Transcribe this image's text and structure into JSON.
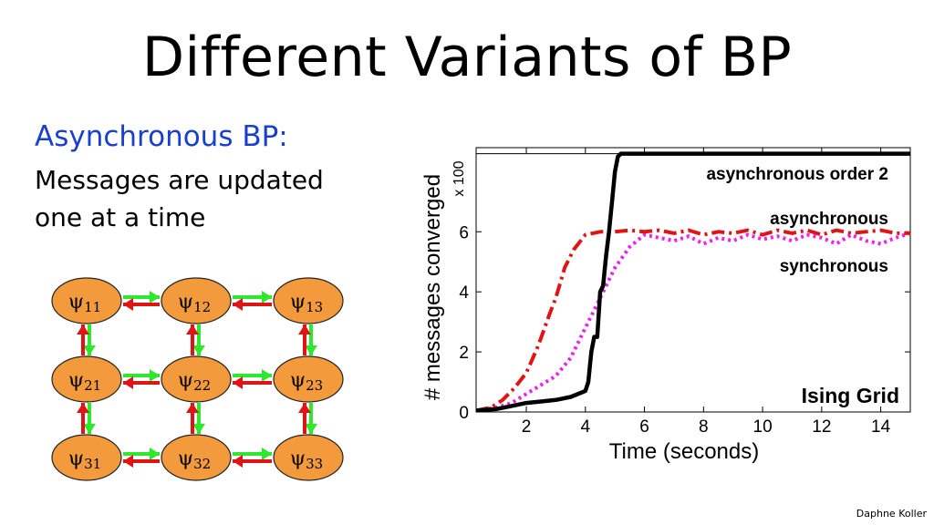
{
  "slide": {
    "title": "Different Variants of BP",
    "heading": "Asynchronous BP:",
    "body_line1": "Messages are updated",
    "body_line2": "one at a time",
    "footer": "Daphne Koller"
  },
  "grid_diagram": {
    "node_symbol": "ψ",
    "nodes": [
      {
        "sub": "11"
      },
      {
        "sub": "12"
      },
      {
        "sub": "13"
      },
      {
        "sub": "21"
      },
      {
        "sub": "22"
      },
      {
        "sub": "23"
      },
      {
        "sub": "31"
      },
      {
        "sub": "32"
      },
      {
        "sub": "33"
      }
    ],
    "colors": {
      "node_fill": "#f39a3c",
      "arrow_green": "#2ee82e",
      "arrow_red": "#e01414"
    }
  },
  "chart_data": {
    "type": "line",
    "title": "",
    "xlabel": "Time (seconds)",
    "ylabel": "# messages converged",
    "y_multiplier": "x 100",
    "xlim": [
      0.3,
      15
    ],
    "ylim": [
      0,
      8.8
    ],
    "x_ticks": [
      "2",
      "4",
      "6",
      "8",
      "10",
      "12",
      "14"
    ],
    "y_ticks": [
      "0",
      "2",
      "4",
      "6"
    ],
    "annotation": "Ising Grid",
    "series": [
      {
        "name": "asynchronous order 2",
        "color": "#000000",
        "style": "solid",
        "x": [
          0.3,
          1.0,
          1.5,
          2.0,
          2.5,
          3.0,
          3.5,
          4.0,
          4.1,
          4.2,
          4.3,
          4.4,
          4.5,
          4.6,
          4.7,
          4.8,
          4.9,
          5.0,
          5.1,
          5.2,
          6,
          8,
          10,
          12,
          14,
          15
        ],
        "y": [
          0.05,
          0.1,
          0.2,
          0.3,
          0.35,
          0.4,
          0.5,
          0.7,
          1.0,
          2.0,
          2.5,
          2.5,
          4.0,
          4.2,
          5.2,
          6.0,
          7.0,
          8.0,
          8.5,
          8.6,
          8.6,
          8.6,
          8.6,
          8.6,
          8.6,
          8.6
        ]
      },
      {
        "name": "asynchronous",
        "color": "#e01414",
        "style": "dashdot",
        "x": [
          0.3,
          0.8,
          1.2,
          1.6,
          2.0,
          2.4,
          2.8,
          3.0,
          3.3,
          3.6,
          4.0,
          4.5,
          5.0,
          5.5,
          6.0,
          6.5,
          7.0,
          7.5,
          8.0,
          8.5,
          9.0,
          9.5,
          10.0,
          10.5,
          11.0,
          11.5,
          12.0,
          12.5,
          13.0,
          13.5,
          14.0,
          14.5,
          15.0
        ],
        "y": [
          0.05,
          0.15,
          0.4,
          0.8,
          1.3,
          2.2,
          3.3,
          3.8,
          4.8,
          5.4,
          5.9,
          6.0,
          6.0,
          6.05,
          6.0,
          6.05,
          5.95,
          6.05,
          5.9,
          6.0,
          5.95,
          6.05,
          5.9,
          6.05,
          5.95,
          6.05,
          5.9,
          6.05,
          5.95,
          6.0,
          6.05,
          5.95,
          5.95
        ]
      },
      {
        "name": "synchronous",
        "color": "#f020f0",
        "style": "dotted",
        "x": [
          0.3,
          1.0,
          1.5,
          2.0,
          2.5,
          3.0,
          3.5,
          4.0,
          4.5,
          5.0,
          5.5,
          6.0,
          6.5,
          7.0,
          7.5,
          8.0,
          8.5,
          9.0,
          9.5,
          10.0,
          10.5,
          11.0,
          11.5,
          12.0,
          12.5,
          13.0,
          13.5,
          14.0,
          14.5,
          15.0
        ],
        "y": [
          0.05,
          0.15,
          0.3,
          0.6,
          0.9,
          1.2,
          1.8,
          2.8,
          3.8,
          4.8,
          5.5,
          5.9,
          5.8,
          5.7,
          5.85,
          5.6,
          5.8,
          5.7,
          5.9,
          5.75,
          5.85,
          5.7,
          5.9,
          5.8,
          5.6,
          5.9,
          5.7,
          5.6,
          5.8,
          5.95
        ]
      }
    ]
  }
}
